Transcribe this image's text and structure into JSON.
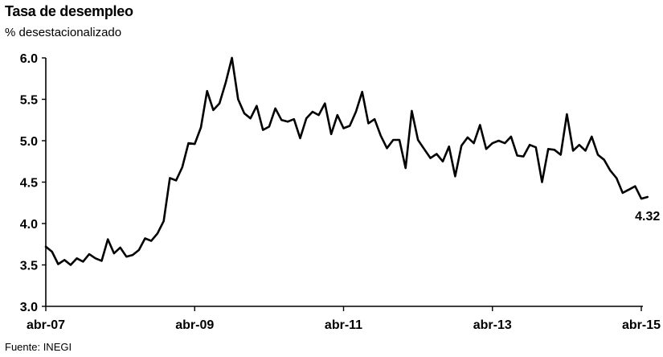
{
  "header": {
    "title": "Tasa de desempleo",
    "subtitle": "% desestacionalizado"
  },
  "footer": {
    "source": "Fuente: INEGI"
  },
  "chart_data": {
    "type": "line",
    "title": "Tasa de desempleo",
    "subtitle": "% desestacionalizado",
    "xlabel": "",
    "ylabel": "",
    "ylim": [
      3.0,
      6.0
    ],
    "y_ticks": [
      3.0,
      3.5,
      4.0,
      4.5,
      5.0,
      5.5,
      6.0
    ],
    "y_tick_labels": [
      "3.0",
      "3.5",
      "4.0",
      "4.5",
      "5.0",
      "5.5",
      "6.0"
    ],
    "x_tick_labels": [
      "abr-07",
      "abr-09",
      "abr-11",
      "abr-13",
      "abr-15"
    ],
    "x_tick_dates": [
      "2007-04",
      "2009-04",
      "2011-04",
      "2013-04",
      "2015-04"
    ],
    "grid": false,
    "line_color": "#000000",
    "end_label": "4.32",
    "series": [
      {
        "x": [
          "2007-04",
          "2007-05",
          "2007-06",
          "2007-07",
          "2007-08",
          "2007-09",
          "2007-10",
          "2007-11",
          "2007-12",
          "2008-01",
          "2008-02",
          "2008-03",
          "2008-04",
          "2008-05",
          "2008-06",
          "2008-07",
          "2008-08",
          "2008-09",
          "2008-10",
          "2008-11",
          "2008-12",
          "2009-01",
          "2009-02",
          "2009-03",
          "2009-04",
          "2009-05",
          "2009-06",
          "2009-07",
          "2009-08",
          "2009-09",
          "2009-10",
          "2009-11",
          "2009-12",
          "2010-01",
          "2010-02",
          "2010-03",
          "2010-04",
          "2010-05",
          "2010-06",
          "2010-07",
          "2010-08",
          "2010-09",
          "2010-10",
          "2010-11",
          "2010-12",
          "2011-01",
          "2011-02",
          "2011-03",
          "2011-04",
          "2011-05",
          "2011-06",
          "2011-07",
          "2011-08",
          "2011-09",
          "2011-10",
          "2011-11",
          "2011-12",
          "2012-01",
          "2012-02",
          "2012-03",
          "2012-04",
          "2012-05",
          "2012-06",
          "2012-07",
          "2012-08",
          "2012-09",
          "2012-10",
          "2012-11",
          "2012-12",
          "2013-01",
          "2013-02",
          "2013-03",
          "2013-04",
          "2013-05",
          "2013-06",
          "2013-07",
          "2013-08",
          "2013-09",
          "2013-10",
          "2013-11",
          "2013-12",
          "2014-01",
          "2014-02",
          "2014-03",
          "2014-04",
          "2014-05",
          "2014-06",
          "2014-07",
          "2014-08",
          "2014-09",
          "2014-10",
          "2014-11",
          "2014-12",
          "2015-01",
          "2015-02",
          "2015-03",
          "2015-04",
          "2015-05"
        ],
        "values": [
          3.72,
          3.66,
          3.51,
          3.56,
          3.5,
          3.58,
          3.54,
          3.63,
          3.58,
          3.55,
          3.81,
          3.64,
          3.71,
          3.6,
          3.62,
          3.68,
          3.82,
          3.79,
          3.88,
          4.03,
          4.55,
          4.52,
          4.68,
          4.97,
          4.96,
          5.16,
          5.6,
          5.37,
          5.45,
          5.7,
          6.0,
          5.5,
          5.33,
          5.27,
          5.42,
          5.13,
          5.17,
          5.39,
          5.25,
          5.23,
          5.26,
          5.03,
          5.27,
          5.35,
          5.31,
          5.45,
          5.08,
          5.31,
          5.15,
          5.18,
          5.35,
          5.59,
          5.21,
          5.26,
          5.06,
          4.91,
          5.01,
          5.01,
          4.67,
          5.36,
          5.01,
          4.9,
          4.79,
          4.84,
          4.75,
          4.93,
          4.57,
          4.94,
          5.04,
          4.97,
          5.19,
          4.9,
          4.97,
          5.0,
          4.97,
          5.05,
          4.82,
          4.81,
          4.95,
          4.92,
          4.5,
          4.9,
          4.89,
          4.83,
          5.32,
          4.88,
          4.95,
          4.88,
          5.05,
          4.83,
          4.77,
          4.64,
          4.55,
          4.37,
          4.41,
          4.45,
          4.3,
          4.32
        ]
      }
    ]
  }
}
